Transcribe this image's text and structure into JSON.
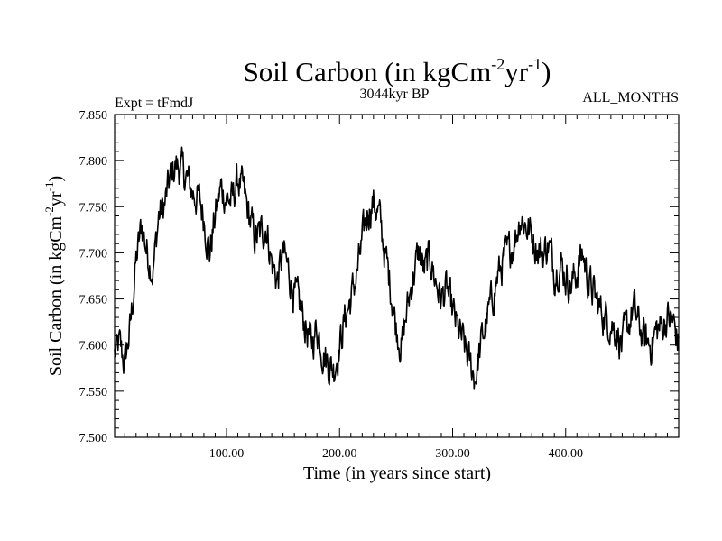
{
  "chart_data": {
    "type": "line",
    "title": "Soil Carbon (in kgCm",
    "title_exp1": "-2",
    "title_mid": "yr",
    "title_exp2": "-1",
    "title_end": ")",
    "subtitle_left": "Expt = tFmdJ",
    "subtitle_center": "3044kyr BP",
    "subtitle_right": "ALL_MONTHS",
    "xlabel": "Time (in years since start)",
    "ylabel": "Soil Carbon (in kgCm",
    "ylabel_exp1": "-2",
    "ylabel_mid": "yr",
    "ylabel_exp2": "-1",
    "ylabel_end": ")",
    "xlim": [
      1,
      500
    ],
    "ylim": [
      7.5,
      7.85
    ],
    "xticks": [
      100,
      200,
      300,
      400
    ],
    "xtick_labels": [
      "100.00",
      "200.00",
      "300.00",
      "400.00"
    ],
    "yticks": [
      7.5,
      7.55,
      7.6,
      7.65,
      7.7,
      7.75,
      7.8,
      7.85
    ],
    "ytick_labels": [
      "7.500",
      "7.550",
      "7.600",
      "7.650",
      "7.700",
      "7.750",
      "7.800",
      "7.850"
    ],
    "series": [
      {
        "name": "Soil Carbon",
        "x": [
          1,
          5,
          10,
          15,
          20,
          25,
          30,
          35,
          40,
          45,
          50,
          55,
          60,
          65,
          70,
          75,
          80,
          85,
          90,
          95,
          100,
          105,
          110,
          115,
          120,
          125,
          130,
          135,
          140,
          145,
          150,
          155,
          160,
          165,
          170,
          175,
          180,
          185,
          190,
          195,
          200,
          205,
          210,
          215,
          220,
          225,
          230,
          235,
          240,
          245,
          250,
          255,
          260,
          265,
          270,
          275,
          280,
          285,
          290,
          295,
          300,
          305,
          310,
          315,
          320,
          325,
          330,
          335,
          340,
          345,
          350,
          355,
          360,
          365,
          370,
          375,
          380,
          385,
          390,
          395,
          400,
          405,
          410,
          415,
          420,
          425,
          430,
          435,
          440,
          445,
          450,
          455,
          460,
          465,
          470,
          475,
          480,
          485,
          490,
          495,
          500
        ],
        "values": [
          7.59,
          7.6,
          7.58,
          7.62,
          7.69,
          7.73,
          7.7,
          7.68,
          7.74,
          7.75,
          7.78,
          7.795,
          7.79,
          7.78,
          7.765,
          7.76,
          7.74,
          7.7,
          7.74,
          7.77,
          7.76,
          7.755,
          7.78,
          7.765,
          7.74,
          7.715,
          7.72,
          7.73,
          7.69,
          7.67,
          7.7,
          7.68,
          7.655,
          7.64,
          7.62,
          7.6,
          7.62,
          7.595,
          7.58,
          7.575,
          7.6,
          7.63,
          7.65,
          7.675,
          7.71,
          7.745,
          7.755,
          7.74,
          7.7,
          7.665,
          7.62,
          7.6,
          7.64,
          7.675,
          7.7,
          7.68,
          7.695,
          7.67,
          7.65,
          7.66,
          7.635,
          7.615,
          7.6,
          7.58,
          7.565,
          7.6,
          7.625,
          7.65,
          7.675,
          7.69,
          7.7,
          7.715,
          7.74,
          7.73,
          7.72,
          7.705,
          7.7,
          7.71,
          7.68,
          7.69,
          7.675,
          7.665,
          7.68,
          7.7,
          7.67,
          7.655,
          7.64,
          7.63,
          7.625,
          7.615,
          7.6,
          7.62,
          7.64,
          7.62,
          7.605,
          7.6,
          7.615,
          7.62,
          7.63,
          7.625,
          7.6
        ]
      }
    ]
  }
}
